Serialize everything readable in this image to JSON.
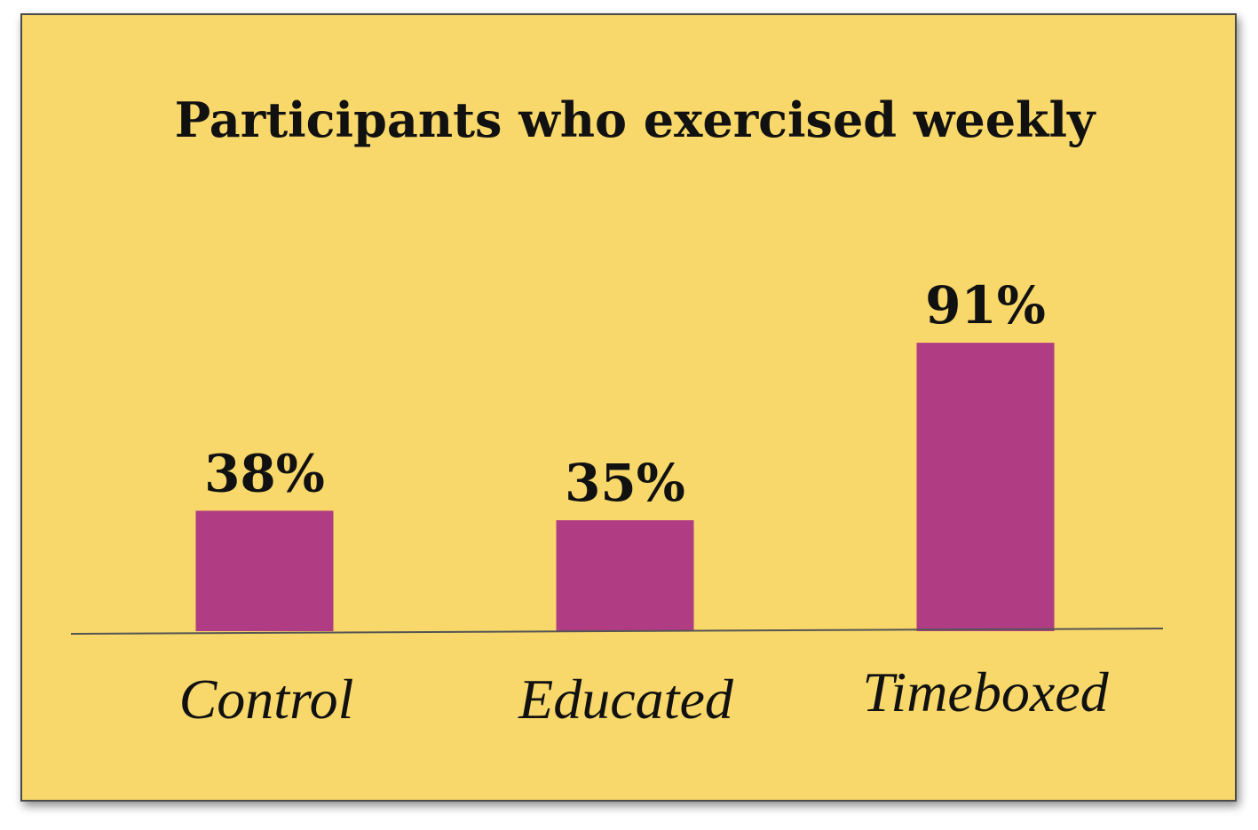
{
  "chart_data": {
    "type": "bar",
    "title": "Participants who exercised weekly",
    "categories": [
      "Control",
      "Educated",
      "Timeboxed"
    ],
    "values": [
      38,
      35,
      91
    ],
    "value_labels": [
      "38%",
      "35%",
      "91%"
    ],
    "xlabel": "",
    "ylabel": "",
    "ylim": [
      0,
      100
    ],
    "grid": false,
    "legend": "none"
  },
  "colors": {
    "background": "#f8d86a",
    "bar": "#b03c84",
    "axis": "#555555",
    "text": "#111111"
  }
}
